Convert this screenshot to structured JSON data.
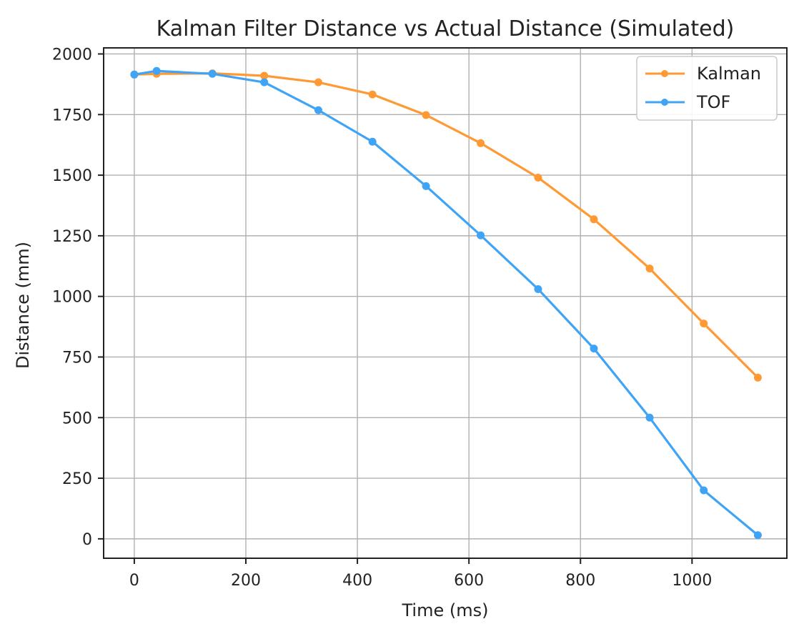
{
  "chart_data": {
    "type": "line",
    "title": "Kalman Filter Distance vs Actual Distance (Simulated)",
    "xlabel": "Time (ms)",
    "ylabel": "Distance (mm)",
    "xlim": [
      -55,
      1170
    ],
    "ylim": [
      -80,
      2025
    ],
    "xticks": [
      0,
      200,
      400,
      600,
      800,
      1000
    ],
    "yticks": [
      0,
      250,
      500,
      750,
      1000,
      1250,
      1500,
      1750,
      2000
    ],
    "grid": true,
    "legend_position": "top-right",
    "series": [
      {
        "name": "Kalman",
        "color": "#ff9933",
        "x": [
          0,
          40,
          140,
          233,
          330,
          427,
          523,
          621,
          724,
          824,
          924,
          1021,
          1118
        ],
        "y": [
          1915,
          1918,
          1920,
          1910,
          1883,
          1833,
          1748,
          1632,
          1490,
          1318,
          1115,
          888,
          665
        ]
      },
      {
        "name": "TOF",
        "color": "#3fa4f5",
        "x": [
          0,
          40,
          140,
          233,
          330,
          427,
          523,
          621,
          724,
          824,
          924,
          1021,
          1118
        ],
        "y": [
          1915,
          1930,
          1918,
          1883,
          1768,
          1638,
          1455,
          1252,
          1030,
          785,
          500,
          200,
          15
        ]
      }
    ]
  }
}
